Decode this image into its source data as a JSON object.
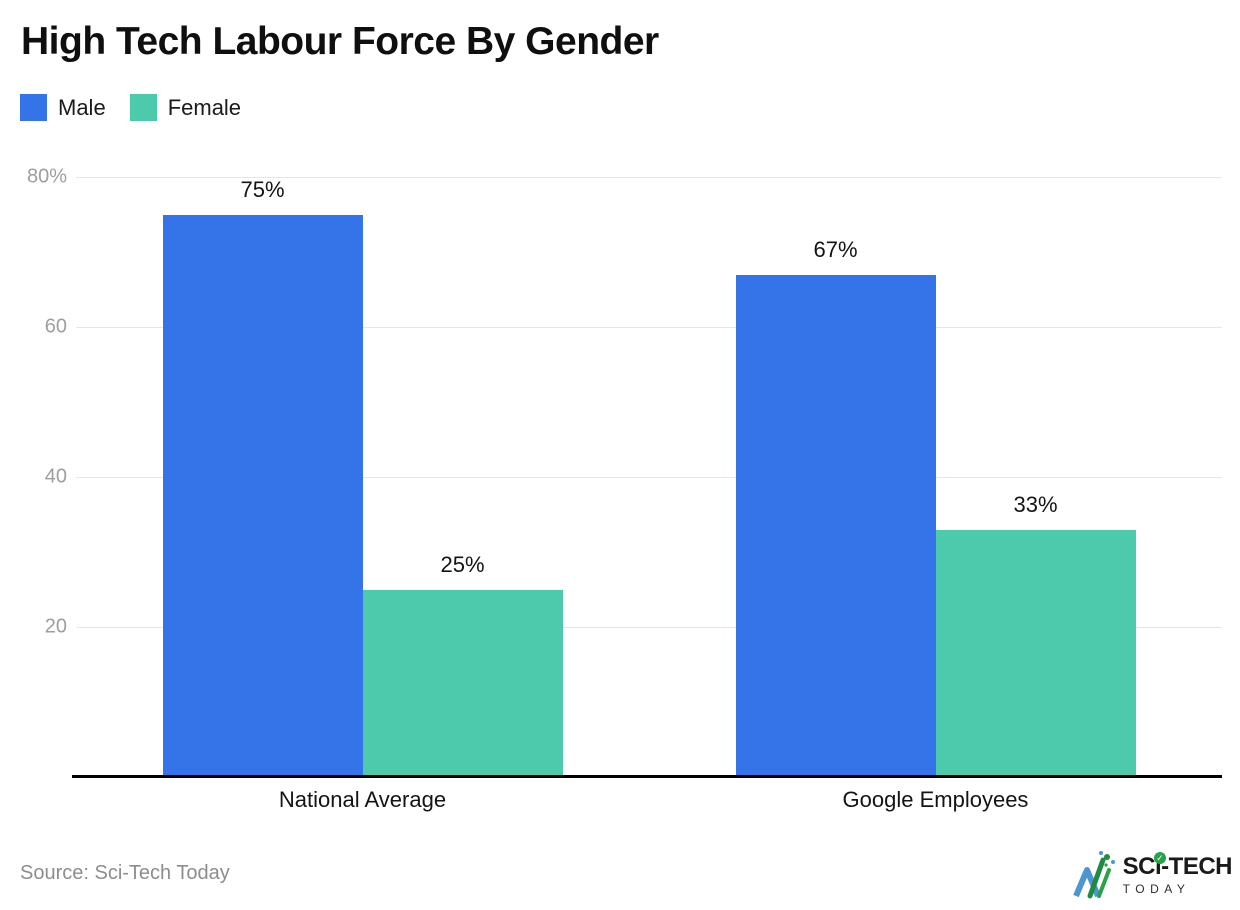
{
  "title": "High Tech Labour Force By Gender",
  "legend": [
    {
      "label": "Male",
      "color": "#3574E8"
    },
    {
      "label": "Female",
      "color": "#4DC9AC"
    }
  ],
  "source": "Source: Sci-Tech Today",
  "logo": {
    "line1": "SCi-TECH",
    "line2": "TODAY",
    "check": "✓"
  },
  "chart_data": {
    "type": "bar",
    "title": "High Tech Labour Force By Gender",
    "categories": [
      "National Average",
      "Google Employees"
    ],
    "series": [
      {
        "name": "Male",
        "color": "#3574E8",
        "values": [
          75,
          67
        ]
      },
      {
        "name": "Female",
        "color": "#4DC9AC",
        "values": [
          25,
          33
        ]
      }
    ],
    "data_label_suffix": "%",
    "y_ticks": [
      {
        "value": 80,
        "label": "80%"
      },
      {
        "value": 60,
        "label": "60"
      },
      {
        "value": 40,
        "label": "40"
      },
      {
        "value": 20,
        "label": "20"
      }
    ],
    "ylim": [
      0,
      80
    ],
    "grid": true,
    "legend_position": "top-left",
    "gridline_color": "#E6E6E6",
    "axis_color": "#000000",
    "tick_label_color": "#9E9E9E"
  }
}
